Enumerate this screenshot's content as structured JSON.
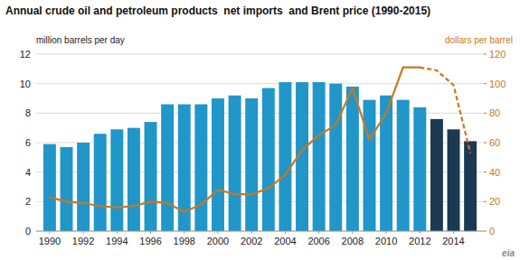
{
  "chart_data": {
    "type": "bar",
    "title": "Annual crude oil and petroleum products  net imports  and Brent price (1990-2015)",
    "ylabel": "million barrels per day",
    "y2label": "dollars per barrel",
    "annotations": [
      "eia"
    ],
    "x": [
      1990,
      1991,
      1992,
      1993,
      1994,
      1995,
      1996,
      1997,
      1998,
      1999,
      2000,
      2001,
      2002,
      2003,
      2004,
      2005,
      2006,
      2007,
      2008,
      2009,
      2010,
      2011,
      2012,
      2013,
      2014,
      2015
    ],
    "xlim": [
      1989.2,
      2015.8
    ],
    "xticks": [
      1990,
      1992,
      1994,
      1996,
      1998,
      2000,
      2002,
      2004,
      2006,
      2008,
      2010,
      2012,
      2014
    ],
    "ylim": [
      0,
      12
    ],
    "yticks": [
      0,
      2,
      4,
      6,
      8,
      10,
      12
    ],
    "y2lim": [
      0,
      120
    ],
    "y2ticks": [
      0,
      20,
      40,
      60,
      80,
      100,
      120
    ],
    "grid": true,
    "series": [
      {
        "type": "bar",
        "colors": [
          "#2196c9",
          "#2196c9",
          "#2196c9",
          "#2196c9",
          "#2196c9",
          "#2196c9",
          "#2196c9",
          "#2196c9",
          "#2196c9",
          "#2196c9",
          "#2196c9",
          "#2196c9",
          "#2196c9",
          "#2196c9",
          "#2196c9",
          "#2196c9",
          "#2196c9",
          "#2196c9",
          "#2196c9",
          "#2196c9",
          "#2196c9",
          "#2196c9",
          "#2196c9",
          "#1b3a52",
          "#1b3a52",
          "#1b3a52"
        ],
        "values": [
          5.9,
          5.7,
          6.0,
          6.6,
          6.9,
          7.0,
          7.4,
          8.6,
          8.6,
          8.6,
          9.0,
          9.2,
          9.0,
          9.7,
          10.1,
          10.1,
          10.1,
          10.0,
          9.8,
          8.9,
          9.2,
          8.9,
          8.4,
          7.6,
          6.9,
          6.1
        ]
      },
      {
        "type": "line",
        "axis": "y2",
        "color": "#c87820",
        "line_style": "solid",
        "values": [
          23,
          20,
          19,
          17,
          16,
          17,
          20,
          19,
          13,
          18,
          28,
          25,
          25,
          29,
          38,
          55,
          65,
          72,
          97,
          62,
          80,
          111,
          111,
          null,
          null,
          null
        ]
      },
      {
        "type": "line",
        "axis": "y2",
        "color": "#c87820",
        "line_style": "dashed",
        "values": [
          null,
          null,
          null,
          null,
          null,
          null,
          null,
          null,
          null,
          null,
          null,
          null,
          null,
          null,
          null,
          null,
          null,
          null,
          null,
          null,
          null,
          null,
          111,
          109,
          99,
          53
        ]
      }
    ]
  }
}
